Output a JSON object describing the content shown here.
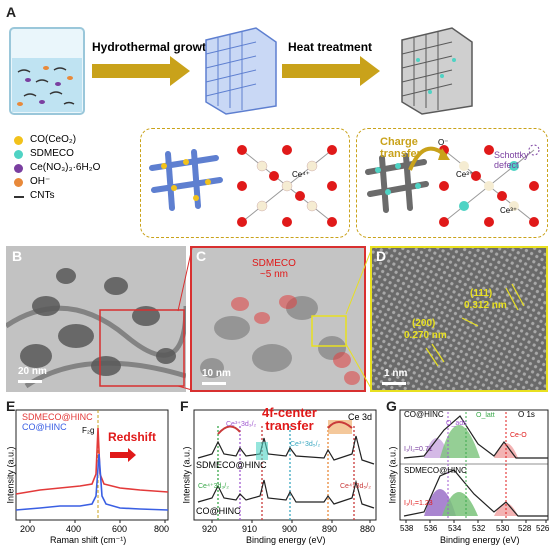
{
  "panel_labels": {
    "a": "A",
    "b": "B",
    "c": "C",
    "d": "D",
    "e": "E",
    "f": "F",
    "g": "G"
  },
  "scheme": {
    "step1": "Hydrothermal growth",
    "step2": "Heat treatment",
    "charge_transfer": "Charge\ntransfer",
    "schottky": "Schottky\ndefect",
    "ce3": "Ce³⁺",
    "ce3b": "Ce³⁺",
    "ce4": "Ce⁴⁺",
    "o_minus": "O⁻",
    "legend": [
      {
        "label": "CO(CeO₂)",
        "color": "#f2c21b"
      },
      {
        "label": "SDMECO",
        "color": "#4fd3c4"
      },
      {
        "label": "Ce(NO₃)₃·6H₂O",
        "color": "#7a3fa0"
      },
      {
        "label": "OH⁻",
        "color": "#e8893a"
      },
      {
        "label": "CNTs",
        "color": "#333333"
      }
    ]
  },
  "tem": {
    "b_scale": "20 nm",
    "c_scale": "10 nm",
    "c_label": "SDMECO\n~5 nm",
    "d_scale": "1 nm",
    "d_111": "(111)",
    "d_111_val": "0.312 nm",
    "d_200": "(200)",
    "d_200_val": "0.270 nm"
  },
  "panel_e": {
    "ylabel": "Intensity (a.u.)",
    "xlabel": "Raman shift (cm⁻¹)",
    "f2g": "F₂g",
    "redshift": "Redshift",
    "legend": [
      {
        "label": "SDMECO@HINC",
        "color": "#e33a3a"
      },
      {
        "label": "CO@HINC",
        "color": "#3a5fe3"
      }
    ],
    "xticks": [
      "200",
      "400",
      "600",
      "800"
    ]
  },
  "panel_f": {
    "ylabel": "Intensity (a.u.)",
    "xlabel": "Binding energy (eV)",
    "title": "Ce 3d",
    "label_top": "SDMECO@HINC",
    "label_bot": "CO@HINC",
    "transfer": "4f-center\ntransfer",
    "xticks": [
      "920",
      "910",
      "900",
      "890",
      "880"
    ],
    "peak_a": "Ce³⁺3d₃/₂",
    "peak_b": "Ce³⁺3d₅/₂",
    "peak_c": "Ce⁴⁺3d₃/₂",
    "peak_d": "Ce⁴⁺3d₅/₂"
  },
  "panel_g": {
    "ylabel": "Intensity (a.u.)",
    "xlabel": "Binding energy (eV)",
    "title": "O 1s",
    "label_top": "CO@HINC",
    "label_bot": "SDMECO@HINC",
    "ratio_top": "I₁/I₂=0.71",
    "ratio_bot": "I₁/I₂=1.23",
    "o_ads": "O_ads",
    "o_latt": "O_latt",
    "ce_o": "Ce-O",
    "xticks": [
      "538",
      "536",
      "534",
      "532",
      "530",
      "528",
      "526"
    ]
  },
  "colors": {
    "arrow": "#c9a21a",
    "dash": "#c9a21a",
    "red_box": "#d83030",
    "yellow_box": "#e8e020"
  }
}
